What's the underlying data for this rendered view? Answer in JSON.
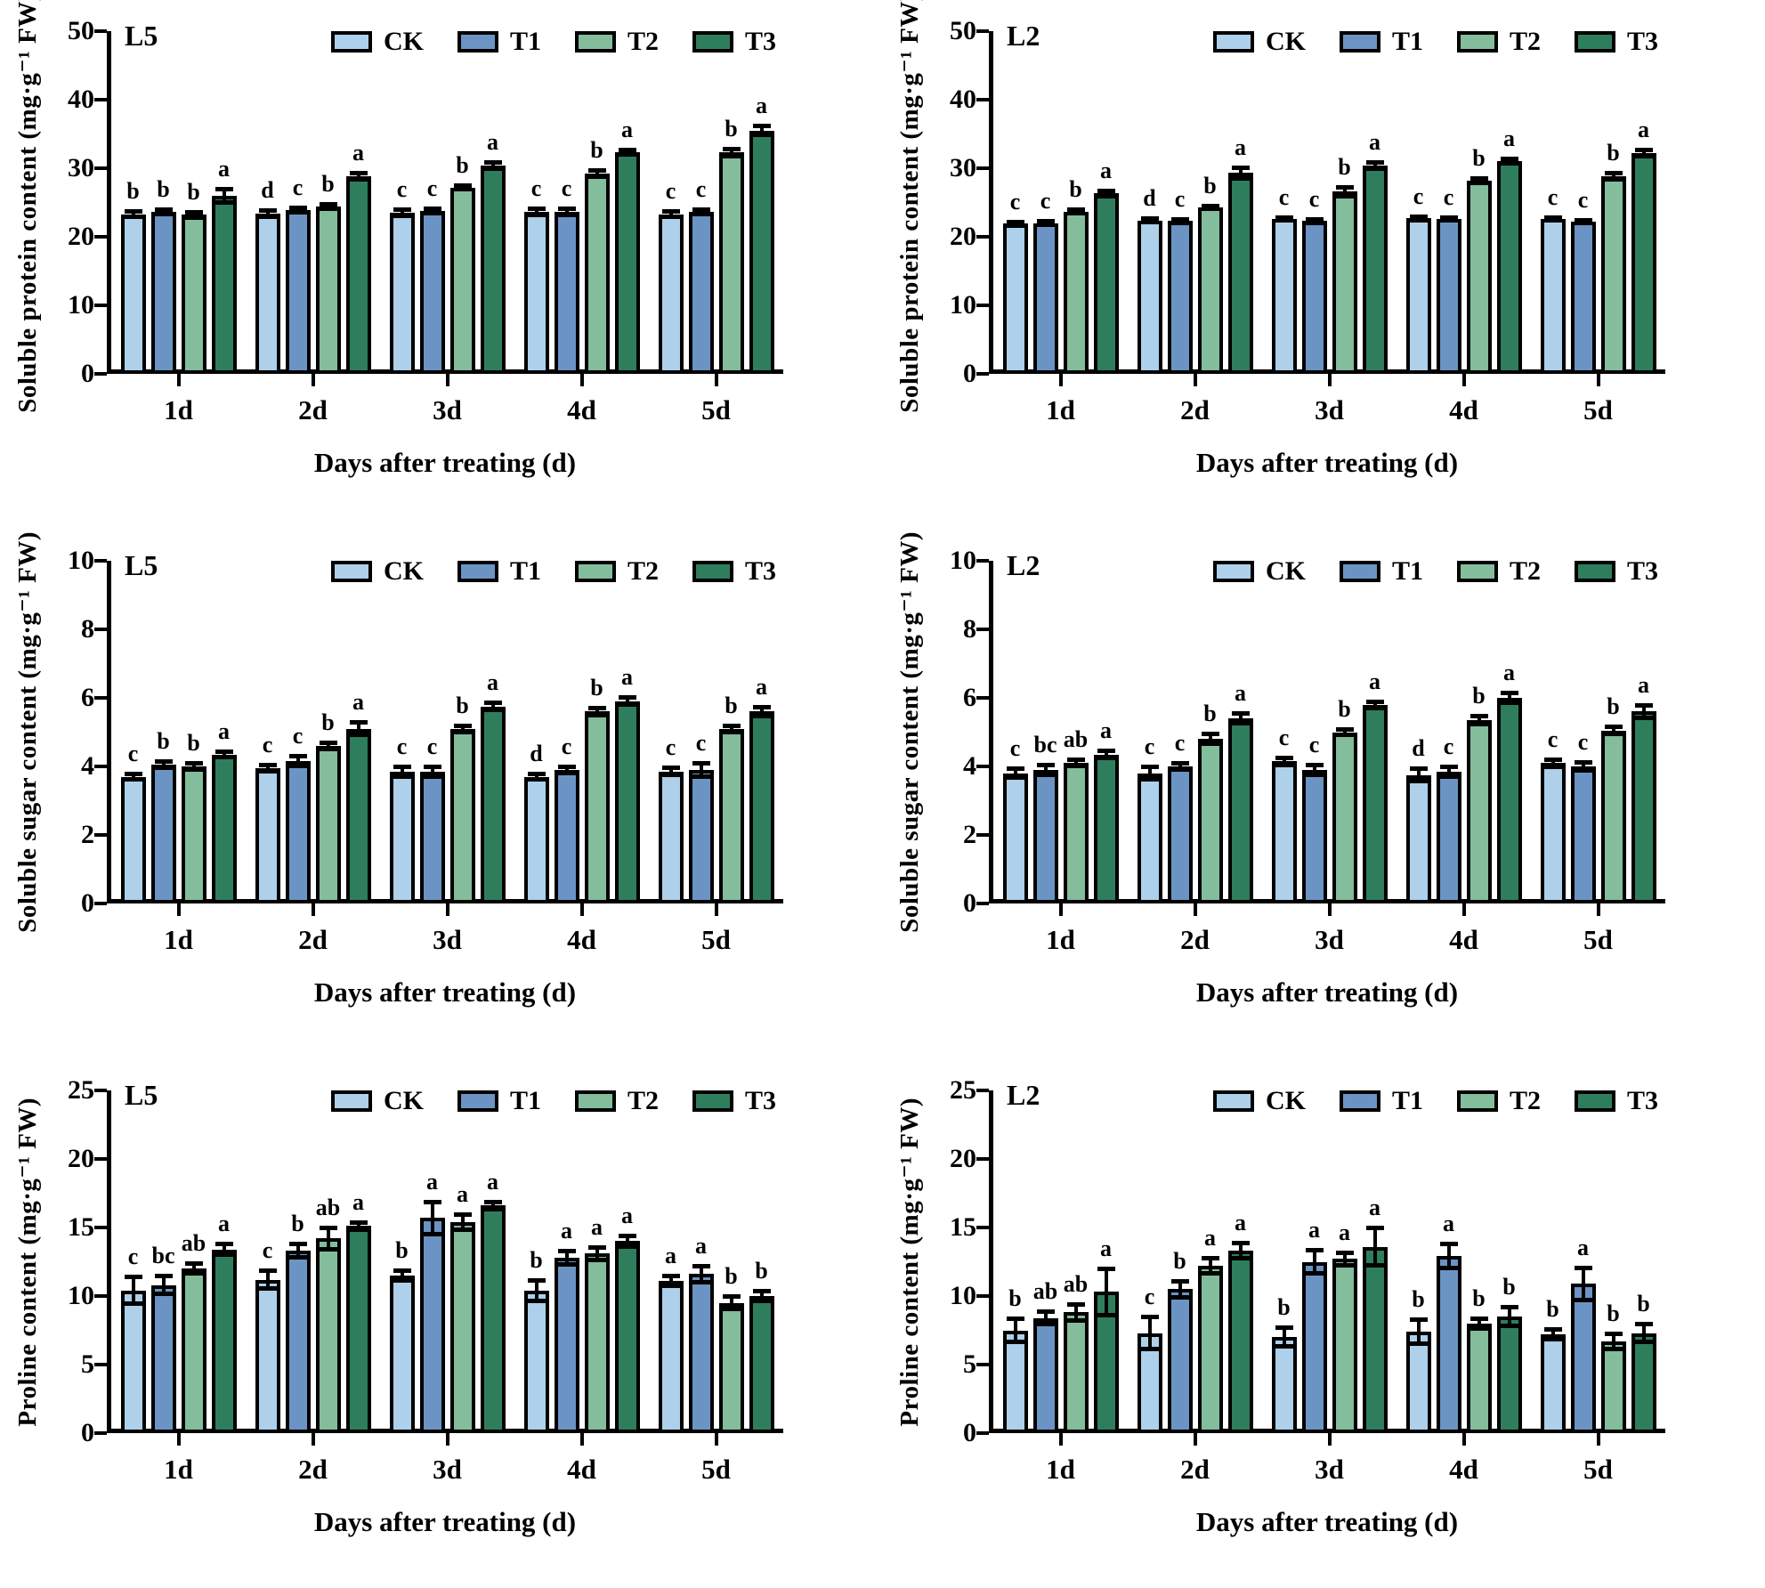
{
  "figure": {
    "legend": [
      "CK",
      "T1",
      "T2",
      "T3"
    ],
    "colors": {
      "CK": "#aed0ea",
      "T1": "#6b94c4",
      "T2": "#83bd9b",
      "T3": "#2e7e5d",
      "outline": "#000000",
      "text": "#000000"
    },
    "x_axis_title": "Days after treating (d)",
    "x_categories": [
      "1d",
      "2d",
      "3d",
      "4d",
      "5d"
    ]
  },
  "chart_data": [
    {
      "type": "bar",
      "panel": "L5",
      "ylabel": "Soluble protein content (mg·g⁻¹ FW)",
      "xlabel": "Days after treating (d)",
      "ylim": [
        0,
        50
      ],
      "yticks": [
        0,
        10,
        20,
        30,
        40,
        50
      ],
      "categories": [
        "1d",
        "2d",
        "3d",
        "4d",
        "5d"
      ],
      "legend_position": "top-center",
      "grid": false,
      "series": [
        {
          "name": "CK",
          "values": [
            23.3,
            23.4,
            23.5,
            23.6,
            23.3
          ],
          "errors": [
            0.5,
            0.5,
            0.5,
            0.5,
            0.5
          ],
          "letters": [
            "b",
            "d",
            "c",
            "c",
            "c"
          ]
        },
        {
          "name": "T1",
          "values": [
            23.6,
            23.9,
            23.8,
            23.6,
            23.6
          ],
          "errors": [
            0.4,
            0.4,
            0.4,
            0.5,
            0.4
          ],
          "letters": [
            "b",
            "c",
            "c",
            "c",
            "c"
          ]
        },
        {
          "name": "T2",
          "values": [
            23.2,
            24.4,
            27.2,
            29.2,
            32.3
          ],
          "errors": [
            0.5,
            0.4,
            0.3,
            0.5,
            0.6
          ],
          "letters": [
            "b",
            "b",
            "b",
            "b",
            "b"
          ]
        },
        {
          "name": "T3",
          "values": [
            26.0,
            28.8,
            30.4,
            32.3,
            35.5
          ],
          "errors": [
            1.0,
            0.5,
            0.5,
            0.4,
            0.7
          ],
          "letters": [
            "a",
            "a",
            "a",
            "a",
            "a"
          ]
        }
      ]
    },
    {
      "type": "bar",
      "panel": "L2",
      "ylabel": "Soluble protein content (mg·g⁻¹ FW)",
      "xlabel": "Days after treating (d)",
      "ylim": [
        0,
        50
      ],
      "yticks": [
        0,
        10,
        20,
        30,
        40,
        50
      ],
      "categories": [
        "1d",
        "2d",
        "3d",
        "4d",
        "5d"
      ],
      "legend_position": "top-center",
      "grid": false,
      "series": [
        {
          "name": "CK",
          "values": [
            21.9,
            22.4,
            22.6,
            22.7,
            22.6
          ],
          "errors": [
            0.3,
            0.3,
            0.3,
            0.3,
            0.3
          ],
          "letters": [
            "c",
            "d",
            "c",
            "c",
            "c"
          ]
        },
        {
          "name": "T1",
          "values": [
            22.0,
            22.3,
            22.3,
            22.6,
            22.2
          ],
          "errors": [
            0.3,
            0.3,
            0.3,
            0.3,
            0.3
          ],
          "letters": [
            "c",
            "c",
            "c",
            "c",
            "c"
          ]
        },
        {
          "name": "T2",
          "values": [
            23.7,
            24.3,
            26.6,
            28.2,
            28.8
          ],
          "errors": [
            0.3,
            0.3,
            0.7,
            0.4,
            0.5
          ],
          "letters": [
            "b",
            "b",
            "b",
            "b",
            "b"
          ]
        },
        {
          "name": "T3",
          "values": [
            26.3,
            29.3,
            30.4,
            31.0,
            32.2
          ],
          "errors": [
            0.4,
            0.8,
            0.5,
            0.4,
            0.5
          ],
          "letters": [
            "a",
            "a",
            "a",
            "a",
            "a"
          ]
        }
      ]
    },
    {
      "type": "bar",
      "panel": "L5",
      "ylabel": "Soluble sugar content (mg·g⁻¹ FW)",
      "xlabel": "Days after treating (d)",
      "ylim": [
        0,
        10
      ],
      "yticks": [
        0,
        2,
        4,
        6,
        8,
        10
      ],
      "categories": [
        "1d",
        "2d",
        "3d",
        "4d",
        "5d"
      ],
      "legend_position": "top-center",
      "grid": false,
      "series": [
        {
          "name": "CK",
          "values": [
            3.7,
            3.95,
            3.85,
            3.7,
            3.85
          ],
          "errors": [
            0.1,
            0.1,
            0.15,
            0.1,
            0.12
          ],
          "letters": [
            "c",
            "c",
            "c",
            "d",
            "c"
          ]
        },
        {
          "name": "T1",
          "values": [
            4.05,
            4.15,
            3.85,
            3.9,
            3.9
          ],
          "errors": [
            0.1,
            0.15,
            0.15,
            0.1,
            0.2
          ],
          "letters": [
            "b",
            "c",
            "c",
            "c",
            "c"
          ]
        },
        {
          "name": "T2",
          "values": [
            4.0,
            4.6,
            5.1,
            5.6,
            5.1
          ],
          "errors": [
            0.1,
            0.1,
            0.1,
            0.12,
            0.1
          ],
          "letters": [
            "b",
            "b",
            "b",
            "b",
            "b"
          ]
        },
        {
          "name": "T3",
          "values": [
            4.35,
            5.1,
            5.75,
            5.9,
            5.6
          ],
          "errors": [
            0.1,
            0.2,
            0.12,
            0.12,
            0.15
          ],
          "letters": [
            "a",
            "a",
            "a",
            "a",
            "a"
          ]
        }
      ]
    },
    {
      "type": "bar",
      "panel": "L2",
      "ylabel": "Soluble sugar content (mg·g⁻¹ FW)",
      "xlabel": "Days after treating (d)",
      "ylim": [
        0,
        10
      ],
      "yticks": [
        0,
        2,
        4,
        6,
        8,
        10
      ],
      "categories": [
        "1d",
        "2d",
        "3d",
        "4d",
        "5d"
      ],
      "legend_position": "top-center",
      "grid": false,
      "series": [
        {
          "name": "CK",
          "values": [
            3.8,
            3.8,
            4.15,
            3.75,
            4.1
          ],
          "errors": [
            0.15,
            0.2,
            0.12,
            0.2,
            0.12
          ],
          "letters": [
            "c",
            "c",
            "c",
            "d",
            "c"
          ]
        },
        {
          "name": "T1",
          "values": [
            3.9,
            4.0,
            3.9,
            3.85,
            4.0
          ],
          "errors": [
            0.15,
            0.1,
            0.15,
            0.15,
            0.12
          ],
          "letters": [
            "bc",
            "c",
            "c",
            "c",
            "c"
          ]
        },
        {
          "name": "T2",
          "values": [
            4.1,
            4.8,
            5.0,
            5.35,
            5.05
          ],
          "errors": [
            0.1,
            0.15,
            0.1,
            0.12,
            0.12
          ],
          "letters": [
            "ab",
            "b",
            "b",
            "b",
            "b"
          ]
        },
        {
          "name": "T3",
          "values": [
            4.35,
            5.4,
            5.8,
            6.0,
            5.6
          ],
          "errors": [
            0.12,
            0.15,
            0.1,
            0.15,
            0.2
          ],
          "letters": [
            "a",
            "a",
            "a",
            "a",
            "a"
          ]
        }
      ]
    },
    {
      "type": "bar",
      "panel": "L5",
      "ylabel": "Proline content (mg·g⁻¹ FW)",
      "xlabel": "Days after treating (d)",
      "ylim": [
        0,
        25
      ],
      "yticks": [
        0,
        5,
        10,
        15,
        20,
        25
      ],
      "categories": [
        "1d",
        "2d",
        "3d",
        "4d",
        "5d"
      ],
      "legend_position": "top-center",
      "grid": false,
      "series": [
        {
          "name": "CK",
          "values": [
            10.4,
            11.2,
            11.5,
            10.4,
            11.1
          ],
          "errors": [
            1.0,
            0.7,
            0.4,
            0.8,
            0.4
          ],
          "letters": [
            "c",
            "c",
            "b",
            "b",
            "a"
          ]
        },
        {
          "name": "T1",
          "values": [
            10.8,
            13.3,
            15.7,
            12.8,
            11.6
          ],
          "errors": [
            0.7,
            0.5,
            1.2,
            0.5,
            0.6
          ],
          "letters": [
            "bc",
            "b",
            "a",
            "a",
            "a"
          ]
        },
        {
          "name": "T2",
          "values": [
            12.0,
            14.2,
            15.4,
            13.1,
            9.5
          ],
          "errors": [
            0.4,
            0.8,
            0.6,
            0.5,
            0.5
          ],
          "letters": [
            "ab",
            "ab",
            "a",
            "a",
            "b"
          ]
        },
        {
          "name": "T3",
          "values": [
            13.4,
            15.1,
            16.6,
            14.0,
            10.0
          ],
          "errors": [
            0.4,
            0.3,
            0.3,
            0.4,
            0.4
          ],
          "letters": [
            "a",
            "a",
            "a",
            "a",
            "b"
          ]
        }
      ]
    },
    {
      "type": "bar",
      "panel": "L2",
      "ylabel": "Proline content (mg·g⁻¹ FW)",
      "xlabel": "Days after treating (d)",
      "ylim": [
        0,
        25
      ],
      "yticks": [
        0,
        5,
        10,
        15,
        20,
        25
      ],
      "categories": [
        "1d",
        "2d",
        "3d",
        "4d",
        "5d"
      ],
      "legend_position": "top-center",
      "grid": false,
      "series": [
        {
          "name": "CK",
          "values": [
            7.5,
            7.3,
            7.0,
            7.4,
            7.2
          ],
          "errors": [
            0.9,
            1.2,
            0.7,
            0.9,
            0.4
          ],
          "letters": [
            "b",
            "c",
            "b",
            "b",
            "b"
          ]
        },
        {
          "name": "T1",
          "values": [
            8.4,
            10.5,
            12.5,
            12.9,
            10.9
          ],
          "errors": [
            0.5,
            0.6,
            0.9,
            0.9,
            1.2
          ],
          "letters": [
            "ab",
            "b",
            "a",
            "a",
            "a"
          ]
        },
        {
          "name": "T2",
          "values": [
            8.8,
            12.2,
            12.7,
            8.0,
            6.7
          ],
          "errors": [
            0.6,
            0.6,
            0.5,
            0.4,
            0.6
          ],
          "letters": [
            "ab",
            "a",
            "a",
            "b",
            "b"
          ]
        },
        {
          "name": "T3",
          "values": [
            10.3,
            13.3,
            13.6,
            8.5,
            7.3
          ],
          "errors": [
            1.7,
            0.6,
            1.4,
            0.7,
            0.7
          ],
          "letters": [
            "a",
            "a",
            "a",
            "b",
            "b"
          ]
        }
      ]
    }
  ]
}
